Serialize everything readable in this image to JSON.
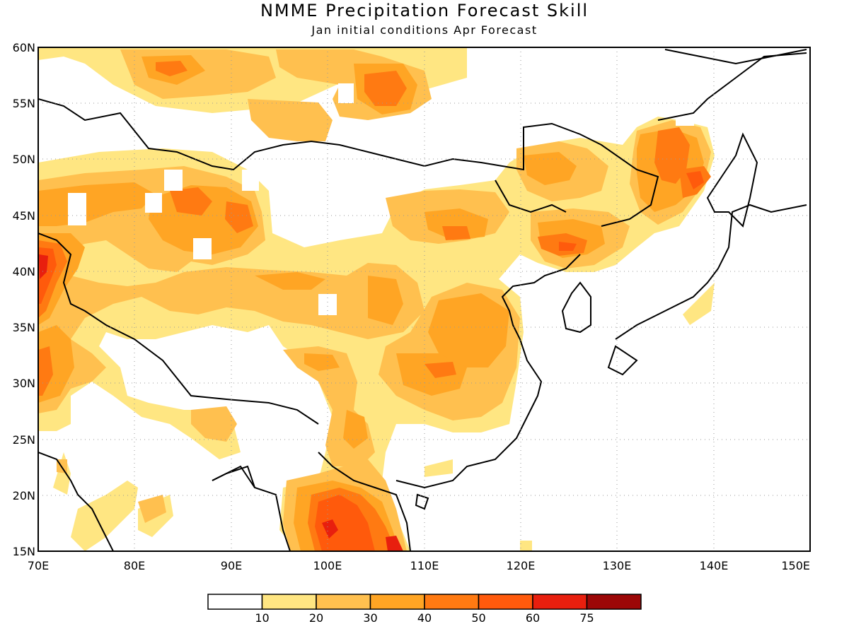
{
  "title": "NMME Precipitation Forecast Skill",
  "subtitle": "Jan initial conditions  Apr Forecast",
  "map": {
    "lon_range": [
      70,
      150
    ],
    "lat_range": [
      15,
      60
    ],
    "x_ticks": [
      "70E",
      "80E",
      "90E",
      "100E",
      "110E",
      "120E",
      "130E",
      "140E",
      "150E"
    ],
    "y_ticks": [
      "15N",
      "20N",
      "25N",
      "30N",
      "35N",
      "40N",
      "45N",
      "50N",
      "55N",
      "60N"
    ],
    "grid": "dotted"
  },
  "legend": {
    "colors": [
      "#ffffff",
      "#ffe682",
      "#ffc04f",
      "#ffa524",
      "#ff7a12",
      "#ff5a0c",
      "#e81f0e",
      "#9c0707"
    ],
    "labels": [
      "10",
      "20",
      "30",
      "40",
      "50",
      "60",
      "75"
    ]
  }
}
